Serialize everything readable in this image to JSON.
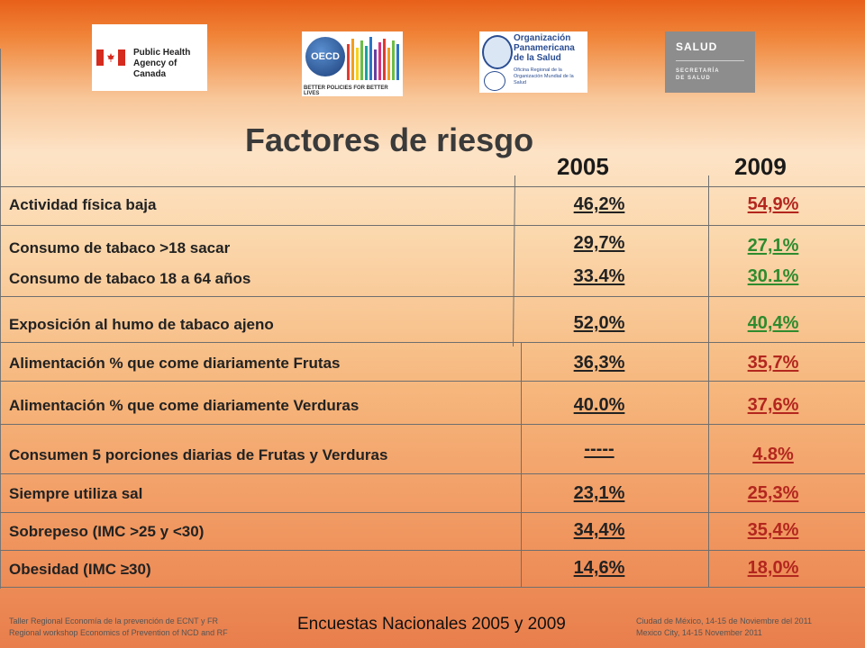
{
  "logos": {
    "canada_text_1": "Public Health",
    "canada_text_2": "Agency of Canada",
    "oecd_name": "OECD",
    "oecd_tagline": "BETTER POLICIES FOR BETTER LIVES",
    "ops_text_1": "Organización",
    "ops_text_2": "Panamericana",
    "ops_text_3": "de la Salud",
    "ops_small_1": "Oficina Regional de la",
    "ops_small_2": "Organización Mundial de la Salud",
    "salud_title": "SALUD",
    "salud_sub_1": "SECRETARÍA",
    "salud_sub_2": "DE SALUD"
  },
  "title": "Factores de riesgo",
  "years": {
    "y1": "2005",
    "y2": "2009"
  },
  "rows": [
    {
      "label": "Actividad física baja",
      "v2005": "46,2%",
      "v2009": "54,9%"
    },
    {
      "label": "Consumo de tabaco >18 sacar",
      "v2005": "29,7%",
      "v2009": "27,1%"
    },
    {
      "label": "Consumo de tabaco 18 a 64 años",
      "v2005": "33.4%",
      "v2009": "30.1%"
    },
    {
      "label": "Exposición al humo de tabaco ajeno",
      "v2005": "52,0%",
      "v2009": "40,4%"
    },
    {
      "label": "Alimentación % que come diariamente Frutas",
      "v2005": "36,3%",
      "v2009": "35,7%"
    },
    {
      "label": "Alimentación % que come diariamente Verduras",
      "v2005": "40.0%",
      "v2009": "37,6%"
    },
    {
      "label": "Consumen  5 porciones diarias de Frutas y Verduras",
      "v2005": "-----",
      "v2009": "4.8%"
    },
    {
      "label": "Siempre utiliza sal",
      "v2005": "23,1%",
      "v2009": "25,3%"
    },
    {
      "label": "Sobrepeso (IMC >25 y <30)",
      "v2005": "34,4%",
      "v2009": "35,4%"
    },
    {
      "label": "Obesidad (IMC ≥30)",
      "v2005": "14,6%",
      "v2009": "18,0%"
    }
  ],
  "colors": {
    "improved": "#2e8b2e",
    "worsened": "#b3261e"
  },
  "footer": {
    "left_1": "Taller Regional Economía de la prevención de ECNT y FR",
    "left_2": "Regional workshop Economics of Prevention of NCD and RF",
    "center": "Encuestas Nacionales 2005 y 2009",
    "right_1": "Ciudad de México,  14-15  de Noviembre del 2011",
    "right_2": "Mexico City, 14-15  November  2011"
  }
}
